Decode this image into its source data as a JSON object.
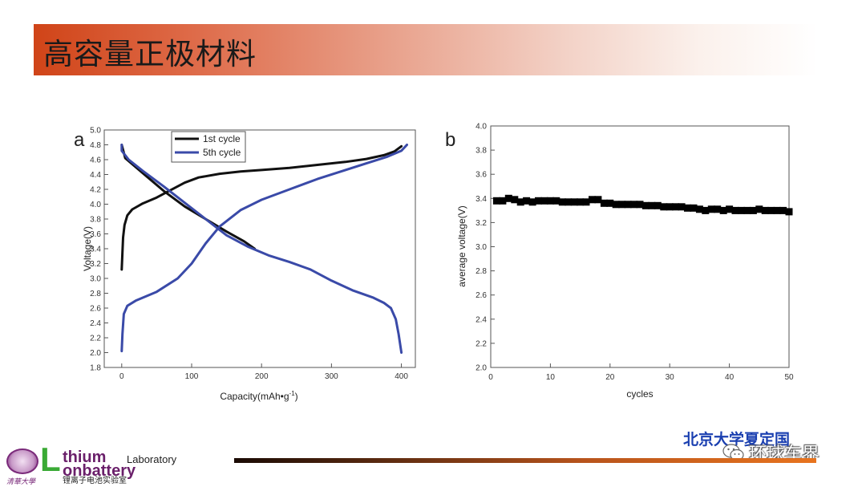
{
  "slide": {
    "title": "高容量正极材料",
    "credit": "北京大学夏定国",
    "watermark": "环球车界"
  },
  "logo": {
    "seal_script": "清華大學",
    "first_letter": "L",
    "line1": "thium",
    "line1_suffix": "Laboratory",
    "line2": "onbattery",
    "chinese": "锂离子电池实验室"
  },
  "colors": {
    "title_gradient_start": "#d04418",
    "cycle1": "#111111",
    "cycle5": "#3a4aa8",
    "marker": "#000000",
    "credit": "#1a3fb0"
  },
  "chart_data": [
    {
      "panel": "a",
      "type": "line",
      "xlabel": "Capacity(mAh•g",
      "xlabel_sup": "-1",
      "xlabel_close": ")",
      "ylabel": "Voltage(V)",
      "xlim": [
        -25,
        420
      ],
      "ylim": [
        1.8,
        5.0
      ],
      "xticks": [
        0,
        100,
        200,
        300,
        400
      ],
      "yticks": [
        1.8,
        2.0,
        2.2,
        2.4,
        2.6,
        2.8,
        3.0,
        3.2,
        3.4,
        3.6,
        3.8,
        4.0,
        4.2,
        4.4,
        4.6,
        4.8,
        5.0
      ],
      "legend_position": "top-left",
      "grid": false,
      "series": [
        {
          "name": "1st cycle",
          "color": "#111111",
          "segments": [
            [
              [
                0,
                3.12
              ],
              [
                1,
                3.35
              ],
              [
                2,
                3.55
              ],
              [
                4,
                3.72
              ],
              [
                8,
                3.85
              ],
              [
                15,
                3.93
              ],
              [
                30,
                4.01
              ],
              [
                50,
                4.09
              ],
              [
                70,
                4.19
              ],
              [
                90,
                4.29
              ],
              [
                110,
                4.36
              ],
              [
                140,
                4.41
              ],
              [
                170,
                4.44
              ],
              [
                200,
                4.46
              ],
              [
                240,
                4.49
              ],
              [
                280,
                4.53
              ],
              [
                320,
                4.57
              ],
              [
                350,
                4.61
              ],
              [
                375,
                4.66
              ],
              [
                390,
                4.71
              ],
              [
                400,
                4.78
              ]
            ],
            [
              [
                0,
                4.8
              ],
              [
                5,
                4.62
              ],
              [
                30,
                4.42
              ],
              [
                60,
                4.18
              ],
              [
                90,
                3.97
              ],
              [
                120,
                3.8
              ],
              [
                150,
                3.63
              ],
              [
                175,
                3.5
              ],
              [
                190,
                3.4
              ]
            ]
          ]
        },
        {
          "name": "5th cycle",
          "color": "#3a4aa8",
          "segments": [
            [
              [
                0,
                2.02
              ],
              [
                1,
                2.25
              ],
              [
                3,
                2.52
              ],
              [
                8,
                2.63
              ],
              [
                20,
                2.7
              ],
              [
                50,
                2.82
              ],
              [
                80,
                3.0
              ],
              [
                100,
                3.2
              ],
              [
                120,
                3.47
              ],
              [
                140,
                3.7
              ],
              [
                170,
                3.92
              ],
              [
                200,
                4.06
              ],
              [
                240,
                4.2
              ],
              [
                280,
                4.34
              ],
              [
                320,
                4.46
              ],
              [
                350,
                4.55
              ],
              [
                380,
                4.64
              ],
              [
                400,
                4.72
              ],
              [
                408,
                4.8
              ]
            ],
            [
              [
                0,
                4.8
              ],
              [
                0,
                4.72
              ],
              [
                10,
                4.6
              ],
              [
                30,
                4.45
              ],
              [
                60,
                4.24
              ],
              [
                90,
                4.02
              ],
              [
                120,
                3.8
              ],
              [
                150,
                3.58
              ],
              [
                180,
                3.43
              ],
              [
                210,
                3.31
              ],
              [
                240,
                3.22
              ],
              [
                270,
                3.12
              ],
              [
                300,
                2.97
              ],
              [
                330,
                2.84
              ],
              [
                360,
                2.74
              ],
              [
                375,
                2.67
              ],
              [
                385,
                2.6
              ],
              [
                392,
                2.45
              ],
              [
                396,
                2.25
              ],
              [
                400,
                2.0
              ]
            ]
          ]
        }
      ]
    },
    {
      "panel": "b",
      "type": "scatter",
      "xlabel": "cycles",
      "ylabel": "average voltage(V)",
      "xlim": [
        0,
        50
      ],
      "ylim": [
        2.0,
        4.0
      ],
      "xticks": [
        0,
        10,
        20,
        30,
        40,
        50
      ],
      "yticks": [
        2.0,
        2.2,
        2.4,
        2.6,
        2.8,
        3.0,
        3.2,
        3.4,
        3.6,
        3.8,
        4.0
      ],
      "grid": false,
      "marker": "square",
      "x": [
        1,
        2,
        3,
        4,
        5,
        6,
        7,
        8,
        9,
        10,
        11,
        12,
        13,
        14,
        15,
        16,
        17,
        18,
        19,
        20,
        21,
        22,
        23,
        24,
        25,
        26,
        27,
        28,
        29,
        30,
        31,
        32,
        33,
        34,
        35,
        36,
        37,
        38,
        39,
        40,
        41,
        42,
        43,
        44,
        45,
        46,
        47,
        48,
        49,
        50
      ],
      "y": [
        3.38,
        3.38,
        3.4,
        3.39,
        3.37,
        3.38,
        3.37,
        3.38,
        3.38,
        3.38,
        3.38,
        3.37,
        3.37,
        3.37,
        3.37,
        3.37,
        3.39,
        3.39,
        3.36,
        3.36,
        3.35,
        3.35,
        3.35,
        3.35,
        3.35,
        3.34,
        3.34,
        3.34,
        3.33,
        3.33,
        3.33,
        3.33,
        3.32,
        3.32,
        3.31,
        3.3,
        3.31,
        3.31,
        3.3,
        3.31,
        3.3,
        3.3,
        3.3,
        3.3,
        3.31,
        3.3,
        3.3,
        3.3,
        3.3,
        3.29
      ]
    }
  ]
}
